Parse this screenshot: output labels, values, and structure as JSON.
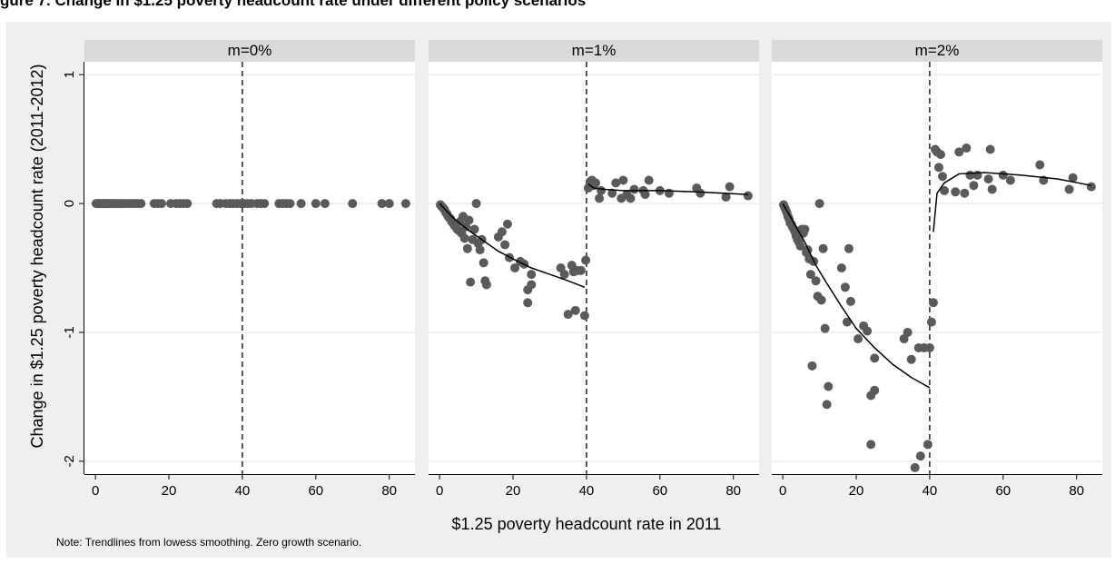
{
  "caption": "gure 7. Change in $1.25 poverty headcount rate under different policy scenarios",
  "note": "Note: Trendlines from lowess smoothing. Zero growth scenario.",
  "chart_data": {
    "type": "scatter",
    "ylabel": "Change in $1.25 poverty headcount rate (2011-2012)",
    "xlabel": "$1.25 poverty headcount rate in 2011",
    "xlim": [
      -3,
      87
    ],
    "ylim": [
      -2.1,
      1.1
    ],
    "xticks": [
      0,
      20,
      40,
      60,
      80
    ],
    "yticks": [
      1,
      0,
      -1,
      -2
    ],
    "threshold": 40,
    "grid": true,
    "colors": {
      "points": "#5a5a5a",
      "strip": "#d9d9d9",
      "panel_outer": "#eeeff0",
      "trend": "#000000"
    },
    "panels": [
      {
        "title": "m=0%",
        "points": [
          [
            0.2,
            0
          ],
          [
            0.6,
            0
          ],
          [
            1,
            0
          ],
          [
            1.4,
            0
          ],
          [
            1.8,
            0
          ],
          [
            2.2,
            0
          ],
          [
            2.7,
            0
          ],
          [
            3.2,
            0
          ],
          [
            3.7,
            0
          ],
          [
            4.2,
            0
          ],
          [
            4.8,
            0
          ],
          [
            5.4,
            0
          ],
          [
            6,
            0
          ],
          [
            6.7,
            0
          ],
          [
            7.4,
            0
          ],
          [
            8.2,
            0
          ],
          [
            9,
            0
          ],
          [
            9.8,
            0
          ],
          [
            10.6,
            0
          ],
          [
            11.5,
            0
          ],
          [
            12.4,
            0
          ],
          [
            16,
            0
          ],
          [
            17,
            0
          ],
          [
            18,
            0
          ],
          [
            20.5,
            0
          ],
          [
            22,
            0
          ],
          [
            23,
            0
          ],
          [
            24,
            0
          ],
          [
            25,
            0
          ],
          [
            33,
            0
          ],
          [
            34,
            0
          ],
          [
            35.5,
            0
          ],
          [
            36.5,
            0
          ],
          [
            37.5,
            0
          ],
          [
            38.5,
            0
          ],
          [
            39.5,
            0
          ],
          [
            40.5,
            0
          ],
          [
            41.5,
            0
          ],
          [
            42.5,
            0
          ],
          [
            44,
            0
          ],
          [
            45,
            0
          ],
          [
            46,
            0
          ],
          [
            50,
            0
          ],
          [
            51,
            0
          ],
          [
            52,
            0
          ],
          [
            53,
            0
          ],
          [
            56,
            0
          ],
          [
            60,
            0
          ],
          [
            62.5,
            0
          ],
          [
            70,
            0
          ],
          [
            78,
            0
          ],
          [
            80,
            0
          ],
          [
            84.5,
            0
          ]
        ],
        "trend": [
          [
            0,
            0
          ],
          [
            84.5,
            0
          ]
        ]
      },
      {
        "title": "m=1%",
        "points": [
          [
            0.2,
            -0.01
          ],
          [
            0.5,
            -0.02
          ],
          [
            0.8,
            -0.03
          ],
          [
            1.1,
            -0.04
          ],
          [
            1.4,
            -0.05
          ],
          [
            1.7,
            -0.07
          ],
          [
            2,
            -0.08
          ],
          [
            2.3,
            -0.1
          ],
          [
            2.6,
            -0.11
          ],
          [
            3,
            -0.12
          ],
          [
            3.3,
            -0.14
          ],
          [
            3.6,
            -0.15
          ],
          [
            4,
            -0.17
          ],
          [
            4.4,
            -0.18
          ],
          [
            4.8,
            -0.2
          ],
          [
            5.2,
            -0.21
          ],
          [
            5.6,
            -0.14
          ],
          [
            6,
            -0.23
          ],
          [
            6.4,
            -0.1
          ],
          [
            6.8,
            -0.27
          ],
          [
            7.2,
            -0.18
          ],
          [
            7.6,
            -0.35
          ],
          [
            8,
            -0.13
          ],
          [
            8.4,
            -0.61
          ],
          [
            9,
            -0.28
          ],
          [
            9.5,
            -0.2
          ],
          [
            10,
            0
          ],
          [
            10.5,
            -0.31
          ],
          [
            11,
            -0.36
          ],
          [
            11.5,
            -0.28
          ],
          [
            12,
            -0.46
          ],
          [
            12.4,
            -0.6
          ],
          [
            12.8,
            -0.63
          ],
          [
            16,
            -0.26
          ],
          [
            17,
            -0.22
          ],
          [
            17.8,
            -0.32
          ],
          [
            18.5,
            -0.16
          ],
          [
            19,
            -0.42
          ],
          [
            20.5,
            -0.5
          ],
          [
            22,
            -0.45
          ],
          [
            23,
            -0.47
          ],
          [
            24,
            -0.67
          ],
          [
            24,
            -0.77
          ],
          [
            25,
            -0.55
          ],
          [
            25,
            -0.63
          ],
          [
            33,
            -0.5
          ],
          [
            34,
            -0.55
          ],
          [
            35,
            -0.86
          ],
          [
            36,
            -0.48
          ],
          [
            36.5,
            -0.53
          ],
          [
            37,
            -0.83
          ],
          [
            37.5,
            -0.52
          ],
          [
            38.5,
            -0.52
          ],
          [
            39.5,
            -0.87
          ],
          [
            39.8,
            -0.44
          ],
          [
            40.5,
            0.12
          ],
          [
            41,
            0.17
          ],
          [
            41.5,
            0.18
          ],
          [
            42,
            0.14
          ],
          [
            42.5,
            0.16
          ],
          [
            43.5,
            0.04
          ],
          [
            44,
            0.1
          ],
          [
            47,
            0.08
          ],
          [
            48,
            0.16
          ],
          [
            49.5,
            0.04
          ],
          [
            50,
            0.18
          ],
          [
            51,
            0.07
          ],
          [
            52,
            0.04
          ],
          [
            53,
            0.11
          ],
          [
            55.5,
            0.1
          ],
          [
            56,
            0.07
          ],
          [
            57,
            0.18
          ],
          [
            60,
            0.1
          ],
          [
            62.5,
            0.08
          ],
          [
            70,
            0.12
          ],
          [
            71,
            0.08
          ],
          [
            78,
            0.05
          ],
          [
            79,
            0.13
          ],
          [
            84,
            0.06
          ]
        ],
        "trend": [
          [
            0,
            0
          ],
          [
            4,
            -0.12
          ],
          [
            8,
            -0.21
          ],
          [
            12,
            -0.29
          ],
          [
            16,
            -0.37
          ],
          [
            20,
            -0.43
          ],
          [
            25,
            -0.5
          ],
          [
            30,
            -0.55
          ],
          [
            35,
            -0.6
          ],
          [
            39.5,
            -0.65
          ],
          [
            40.5,
            0.15
          ],
          [
            42,
            0.12
          ],
          [
            45,
            0.11
          ],
          [
            50,
            0.1
          ],
          [
            60,
            0.1
          ],
          [
            70,
            0.09
          ],
          [
            84,
            0.07
          ]
        ]
      },
      {
        "title": "m=2%",
        "points": [
          [
            0.2,
            -0.01
          ],
          [
            0.5,
            -0.03
          ],
          [
            0.8,
            -0.05
          ],
          [
            1.1,
            -0.07
          ],
          [
            1.4,
            -0.1
          ],
          [
            1.7,
            -0.12
          ],
          [
            2,
            -0.15
          ],
          [
            2.3,
            -0.16
          ],
          [
            2.6,
            -0.18
          ],
          [
            3,
            -0.2
          ],
          [
            3.3,
            -0.22
          ],
          [
            3.6,
            -0.25
          ],
          [
            4,
            -0.28
          ],
          [
            4.4,
            -0.3
          ],
          [
            4.8,
            -0.33
          ],
          [
            5.2,
            -0.2
          ],
          [
            5.6,
            -0.23
          ],
          [
            6,
            -0.2
          ],
          [
            6.4,
            -0.38
          ],
          [
            6.8,
            -0.36
          ],
          [
            7.2,
            -0.43
          ],
          [
            7.6,
            -0.55
          ],
          [
            8,
            -1.26
          ],
          [
            8.4,
            -0.45
          ],
          [
            9,
            -0.6
          ],
          [
            9.5,
            -0.72
          ],
          [
            10,
            0
          ],
          [
            10.5,
            -0.75
          ],
          [
            11,
            -0.35
          ],
          [
            11.5,
            -0.97
          ],
          [
            12,
            -1.56
          ],
          [
            12.4,
            -1.42
          ],
          [
            16,
            -0.5
          ],
          [
            17,
            -0.65
          ],
          [
            17.5,
            -0.92
          ],
          [
            18,
            -0.35
          ],
          [
            18.5,
            -0.76
          ],
          [
            20.5,
            -1.05
          ],
          [
            22,
            -0.95
          ],
          [
            23,
            -0.99
          ],
          [
            24,
            -1.49
          ],
          [
            24,
            -1.87
          ],
          [
            25,
            -1.45
          ],
          [
            25,
            -1.2
          ],
          [
            33,
            -1.05
          ],
          [
            34,
            -1.0
          ],
          [
            35,
            -1.21
          ],
          [
            36,
            -2.05
          ],
          [
            37,
            -1.12
          ],
          [
            37.5,
            -1.96
          ],
          [
            38.5,
            -1.12
          ],
          [
            39.5,
            -1.87
          ],
          [
            40,
            -1.12
          ],
          [
            40.5,
            -0.92
          ],
          [
            41,
            -0.77
          ],
          [
            41.5,
            0.42
          ],
          [
            42,
            0.4
          ],
          [
            42.5,
            0.28
          ],
          [
            43,
            0.38
          ],
          [
            43.5,
            0.21
          ],
          [
            44,
            0.1
          ],
          [
            47,
            0.09
          ],
          [
            48,
            0.4
          ],
          [
            49.5,
            0.08
          ],
          [
            50,
            0.43
          ],
          [
            51,
            0.22
          ],
          [
            52,
            0.14
          ],
          [
            53,
            0.22
          ],
          [
            56,
            0.19
          ],
          [
            56.5,
            0.42
          ],
          [
            57,
            0.11
          ],
          [
            60,
            0.22
          ],
          [
            62,
            0.18
          ],
          [
            70,
            0.3
          ],
          [
            71,
            0.18
          ],
          [
            78,
            0.11
          ],
          [
            79,
            0.2
          ],
          [
            84,
            0.13
          ]
        ],
        "trend": [
          [
            0,
            0
          ],
          [
            3,
            -0.15
          ],
          [
            6,
            -0.3
          ],
          [
            9,
            -0.48
          ],
          [
            12,
            -0.62
          ],
          [
            16,
            -0.8
          ],
          [
            20,
            -0.97
          ],
          [
            25,
            -1.12
          ],
          [
            30,
            -1.25
          ],
          [
            35,
            -1.35
          ],
          [
            40,
            -1.43
          ],
          [
            41,
            -0.22
          ],
          [
            42,
            0.08
          ],
          [
            44,
            0.16
          ],
          [
            48,
            0.23
          ],
          [
            55,
            0.24
          ],
          [
            65,
            0.22
          ],
          [
            75,
            0.19
          ],
          [
            84,
            0.14
          ]
        ]
      }
    ]
  }
}
